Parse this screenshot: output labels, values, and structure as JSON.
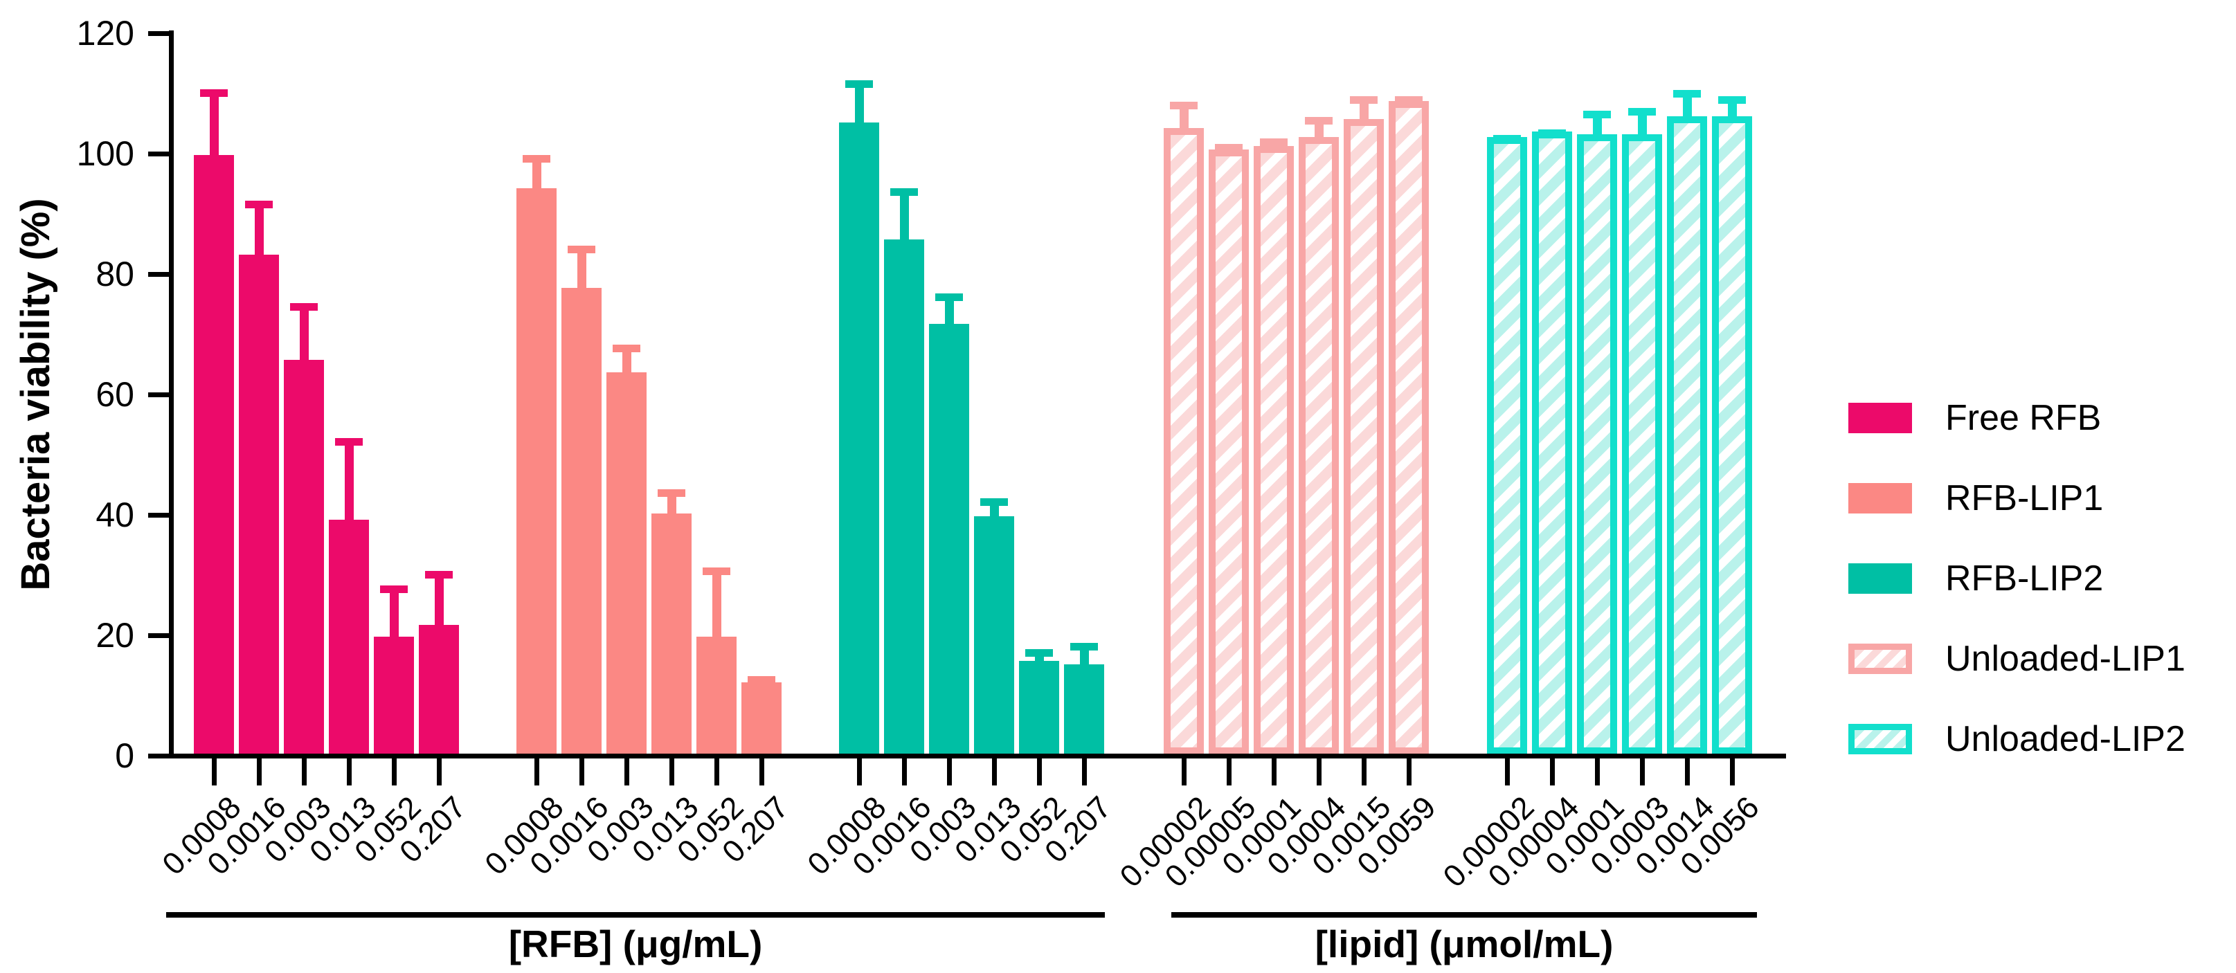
{
  "chart_data": {
    "type": "bar",
    "title": "",
    "ylabel": "Bacteria viability (%)",
    "ylim": [
      0,
      120
    ],
    "yticks": [
      0,
      20,
      40,
      60,
      80,
      100,
      120
    ],
    "grid": false,
    "legend_position": "right",
    "error_bars": "upper-sd",
    "axis_section_labels": [
      {
        "label": "[RFB] (μg/mL)",
        "applies_to_groups": [
          "Free RFB",
          "RFB-LIP1",
          "RFB-LIP2"
        ]
      },
      {
        "label": "[lipid] (μmol/mL)",
        "applies_to_groups": [
          "Unloaded-LIP1",
          "Unloaded-LIP2"
        ]
      }
    ],
    "groups": [
      {
        "name": "Free RFB",
        "style": "solid",
        "color": "#EC0A6A",
        "categories": [
          "0.0008",
          "0.0016",
          "0.003",
          "0.013",
          "0.052",
          "0.207"
        ],
        "values": [
          99.5,
          83,
          65.5,
          39,
          19.5,
          21.5
        ],
        "errors": [
          11,
          9,
          9.5,
          13.5,
          8.5,
          9
        ]
      },
      {
        "name": "RFB-LIP1",
        "style": "solid",
        "color": "#FB8884",
        "categories": [
          "0.0008",
          "0.0016",
          "0.003",
          "0.013",
          "0.052",
          "0.207"
        ],
        "values": [
          94,
          77.5,
          63.5,
          40,
          19.5,
          12
        ],
        "errors": [
          5.5,
          7,
          4.5,
          4,
          11.5,
          1
        ]
      },
      {
        "name": "RFB-LIP2",
        "style": "solid",
        "color": "#00BFA4",
        "categories": [
          "0.0008",
          "0.0016",
          "0.003",
          "0.013",
          "0.052",
          "0.207"
        ],
        "values": [
          105,
          85.5,
          71.5,
          39.5,
          15.5,
          15
        ],
        "errors": [
          7,
          8.5,
          5,
          3,
          2,
          3.5
        ]
      },
      {
        "name": "Unloaded-LIP1",
        "style": "hatched",
        "color": "#F8A6A6",
        "stripe_color": "#FBD9D9",
        "categories": [
          "0.00002",
          "0.00005",
          "0.0001",
          "0.0004",
          "0.0015",
          "0.0059"
        ],
        "values": [
          104,
          100.5,
          101,
          102.5,
          105.5,
          108.5
        ],
        "errors": [
          5.5,
          2,
          2.5,
          4.5,
          5,
          2
        ]
      },
      {
        "name": "Unloaded-LIP2",
        "style": "hatched",
        "color": "#12DFCC",
        "stripe_color": "#B9F2EB",
        "categories": [
          "0.00002",
          "0.00004",
          "0.0001",
          "0.0003",
          "0.0014",
          "0.0056"
        ],
        "values": [
          102.5,
          103.5,
          103,
          103,
          106,
          106
        ],
        "errors": [
          1.5,
          1.5,
          5,
          5.5,
          5.5,
          4.5
        ]
      }
    ]
  }
}
